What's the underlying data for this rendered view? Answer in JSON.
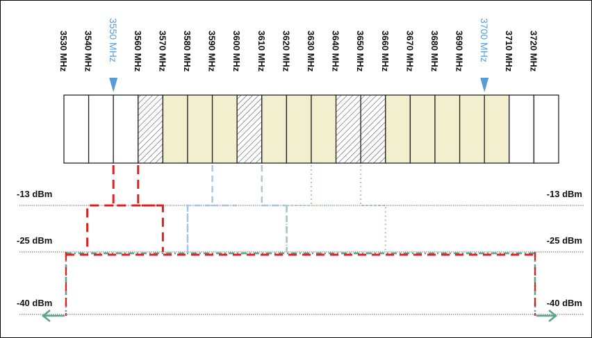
{
  "freq_labels": [
    "3530 MHz",
    "3540 MHz",
    "3550 MHz",
    "3560 MHz",
    "3570 MHz",
    "3580 MHz",
    "3590 MHz",
    "3600 MHz",
    "3610 MHz",
    "3620 MHz",
    "3630 MHz",
    "3640 MHz",
    "3650 MHz",
    "3660 MHz",
    "3670 MHz",
    "3680 MHz",
    "3690 MHz",
    "3700 MHz",
    "3710 MHz",
    "3720 MHz"
  ],
  "markers": [
    "3550 MHz",
    "3700 MHz"
  ],
  "cells": [
    "white",
    "white",
    "white",
    "hatched",
    "tan",
    "tan",
    "tan",
    "hatched",
    "tan",
    "tan",
    "tan",
    "hatched",
    "hatched",
    "tan",
    "tan",
    "tan",
    "tan",
    "tan",
    "white",
    "white"
  ],
  "levels": [
    {
      "left": "-13 dBm",
      "right": "-13 dBm"
    },
    {
      "left": "-25 dBm",
      "right": "-25 dBm"
    },
    {
      "left": "-40 dBm",
      "right": "-40 dBm"
    }
  ],
  "colors": {
    "marker": "#5b9bd5",
    "tan": "#f2efcf",
    "red": "#e02020",
    "blue": "#a9c4dc",
    "green": "#a9d2a9",
    "teal": "#5aa58c"
  }
}
